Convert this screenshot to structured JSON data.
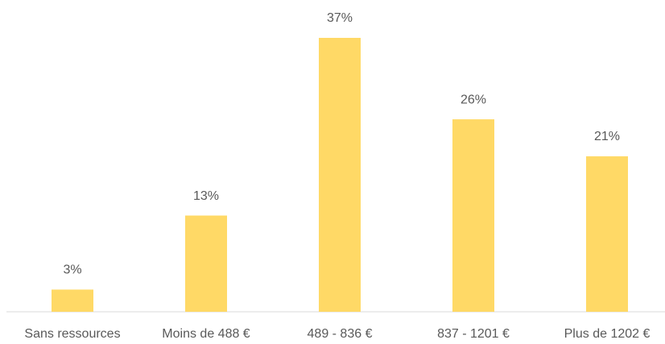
{
  "chart_data": {
    "type": "bar",
    "categories": [
      "Sans ressources",
      "Moins de 488 €",
      "489 - 836 €",
      "837 - 1201 €",
      "Plus de 1202 €"
    ],
    "values": [
      3,
      13,
      37,
      26,
      21
    ],
    "value_labels": [
      "3%",
      "13%",
      "37%",
      "26%",
      "21%"
    ],
    "color": "#ffd966"
  }
}
